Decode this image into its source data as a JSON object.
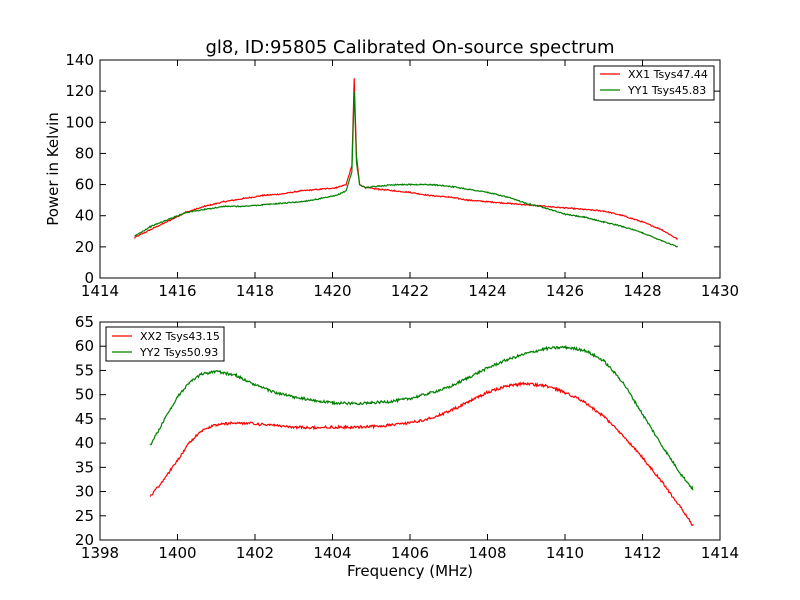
{
  "figure": {
    "title": "gl8, ID:95805 Calibrated On-source spectrum"
  },
  "chart_data": [
    {
      "type": "line",
      "title": "gl8, ID:95805 Calibrated On-source spectrum",
      "xlabel": "",
      "ylabel": "Power in Kelvin",
      "xlim": [
        1414,
        1430
      ],
      "ylim": [
        0,
        140
      ],
      "xticks": [
        1414,
        1416,
        1418,
        1420,
        1422,
        1424,
        1426,
        1428,
        1430
      ],
      "yticks": [
        0,
        20,
        40,
        60,
        80,
        100,
        120,
        140
      ],
      "grid": false,
      "legend_position": "top-right",
      "series": [
        {
          "name": "XX1 Tsys47.44",
          "color": "#ff0000",
          "x": [
            1414.9,
            1415.3,
            1415.8,
            1416.2,
            1416.7,
            1417.2,
            1417.7,
            1418.2,
            1418.7,
            1419.2,
            1419.7,
            1420.1,
            1420.35,
            1420.5,
            1420.56,
            1420.62,
            1420.7,
            1420.85,
            1421.2,
            1421.6,
            1422.0,
            1422.5,
            1423.0,
            1423.5,
            1424.0,
            1424.5,
            1425.0,
            1425.5,
            1426.0,
            1426.5,
            1427.0,
            1427.5,
            1428.0,
            1428.5,
            1428.9
          ],
          "values": [
            26,
            31,
            37,
            42,
            46,
            49,
            51,
            53,
            54,
            56,
            57,
            58,
            60,
            72,
            128,
            78,
            60,
            58,
            57,
            56,
            55,
            53,
            52,
            50,
            49,
            48,
            47,
            46,
            45,
            44,
            43,
            40,
            36,
            31,
            25
          ]
        },
        {
          "name": "YY1 Tsys45.83",
          "color": "#008000",
          "x": [
            1414.9,
            1415.3,
            1415.8,
            1416.2,
            1416.7,
            1417.2,
            1417.7,
            1418.2,
            1418.7,
            1419.2,
            1419.7,
            1420.1,
            1420.35,
            1420.5,
            1420.56,
            1420.62,
            1420.7,
            1420.85,
            1421.2,
            1421.6,
            1422.0,
            1422.5,
            1423.0,
            1423.5,
            1424.0,
            1424.5,
            1425.0,
            1425.5,
            1426.0,
            1426.5,
            1427.0,
            1427.5,
            1428.0,
            1428.5,
            1428.9
          ],
          "values": [
            27,
            33,
            38,
            42,
            44,
            46,
            46,
            47,
            48,
            49,
            51,
            53,
            56,
            68,
            120,
            74,
            60,
            58,
            59,
            60,
            60,
            60,
            59,
            57,
            55,
            52,
            48,
            45,
            41,
            39,
            36,
            33,
            29,
            24,
            20
          ]
        }
      ]
    },
    {
      "type": "line",
      "title": "",
      "xlabel": "Frequency (MHz)",
      "ylabel": "",
      "xlim": [
        1398,
        1414
      ],
      "ylim": [
        20,
        65
      ],
      "xticks": [
        1398,
        1400,
        1402,
        1404,
        1406,
        1408,
        1410,
        1412,
        1414
      ],
      "yticks": [
        20,
        25,
        30,
        35,
        40,
        45,
        50,
        55,
        60,
        65
      ],
      "grid": false,
      "legend_position": "top-left",
      "series": [
        {
          "name": "XX2 Tsys43.15",
          "color": "#ff0000",
          "x": [
            1399.3,
            1399.6,
            1400.0,
            1400.3,
            1400.6,
            1401.0,
            1401.5,
            1402.0,
            1402.5,
            1403.0,
            1403.5,
            1404.0,
            1404.5,
            1405.0,
            1405.5,
            1406.0,
            1406.5,
            1407.0,
            1407.5,
            1408.0,
            1408.5,
            1409.0,
            1409.5,
            1410.0,
            1410.5,
            1411.0,
            1411.5,
            1412.0,
            1412.5,
            1413.0,
            1413.3
          ],
          "values": [
            29,
            32,
            36.5,
            40,
            42.5,
            43.8,
            44.2,
            44,
            43.6,
            43.3,
            43.2,
            43.3,
            43.3,
            43.4,
            43.7,
            44.2,
            45,
            46.5,
            48.5,
            50.5,
            51.8,
            52.3,
            51.8,
            50.5,
            48.5,
            45.5,
            41.5,
            37,
            32,
            26.5,
            23
          ]
        },
        {
          "name": "YY2 Tsys50.93",
          "color": "#008000",
          "x": [
            1399.3,
            1399.6,
            1400.0,
            1400.3,
            1400.6,
            1401.0,
            1401.5,
            1402.0,
            1402.5,
            1403.0,
            1403.5,
            1404.0,
            1404.5,
            1405.0,
            1405.5,
            1406.0,
            1406.5,
            1407.0,
            1407.5,
            1408.0,
            1408.5,
            1409.0,
            1409.5,
            1410.0,
            1410.5,
            1411.0,
            1411.5,
            1412.0,
            1412.5,
            1413.0,
            1413.3
          ],
          "values": [
            39.5,
            44,
            49.5,
            52.5,
            54.2,
            54.8,
            54,
            52,
            50.5,
            49.5,
            48.8,
            48.3,
            48.2,
            48.3,
            48.6,
            49.2,
            50.3,
            51.5,
            53.5,
            55.5,
            57.2,
            58.5,
            59.5,
            59.8,
            59.2,
            57,
            52.5,
            46,
            39.5,
            33.5,
            30.5
          ]
        }
      ]
    }
  ]
}
